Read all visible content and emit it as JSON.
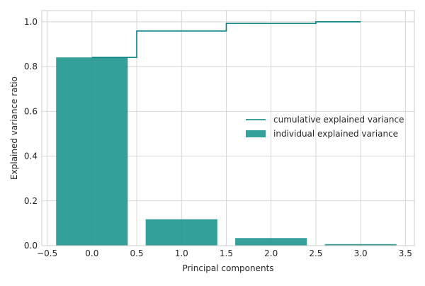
{
  "chart_data": {
    "type": "bar",
    "title": "",
    "xlabel": "Principal components",
    "ylabel": "Explained variance ratio",
    "xlim": [
      -0.56,
      3.6
    ],
    "ylim": [
      0.0,
      1.05
    ],
    "xticks": [
      -0.5,
      0.0,
      0.5,
      1.0,
      1.5,
      2.0,
      2.5,
      3.0,
      3.5
    ],
    "xtick_labels": [
      "−0.5",
      "0.0",
      "0.5",
      "1.0",
      "1.5",
      "2.0",
      "2.5",
      "3.0",
      "3.5"
    ],
    "yticks": [
      0.0,
      0.2,
      0.4,
      0.6,
      0.8,
      1.0
    ],
    "ytick_labels": [
      "0.0",
      "0.2",
      "0.4",
      "0.6",
      "0.8",
      "1.0"
    ],
    "grid": true,
    "legend_position": "center-right",
    "series": [
      {
        "name": "individual explained variance",
        "kind": "bar",
        "x": [
          0,
          1,
          2,
          3
        ],
        "values": [
          0.841,
          0.118,
          0.034,
          0.007
        ],
        "bar_width": 0.8,
        "color": "#1f968f"
      },
      {
        "name": "cumulative explained variance",
        "kind": "step",
        "step_where": "mid",
        "x": [
          0,
          1,
          2,
          3
        ],
        "values": [
          0.841,
          0.959,
          0.993,
          1.0
        ],
        "color": "#008080"
      }
    ]
  }
}
